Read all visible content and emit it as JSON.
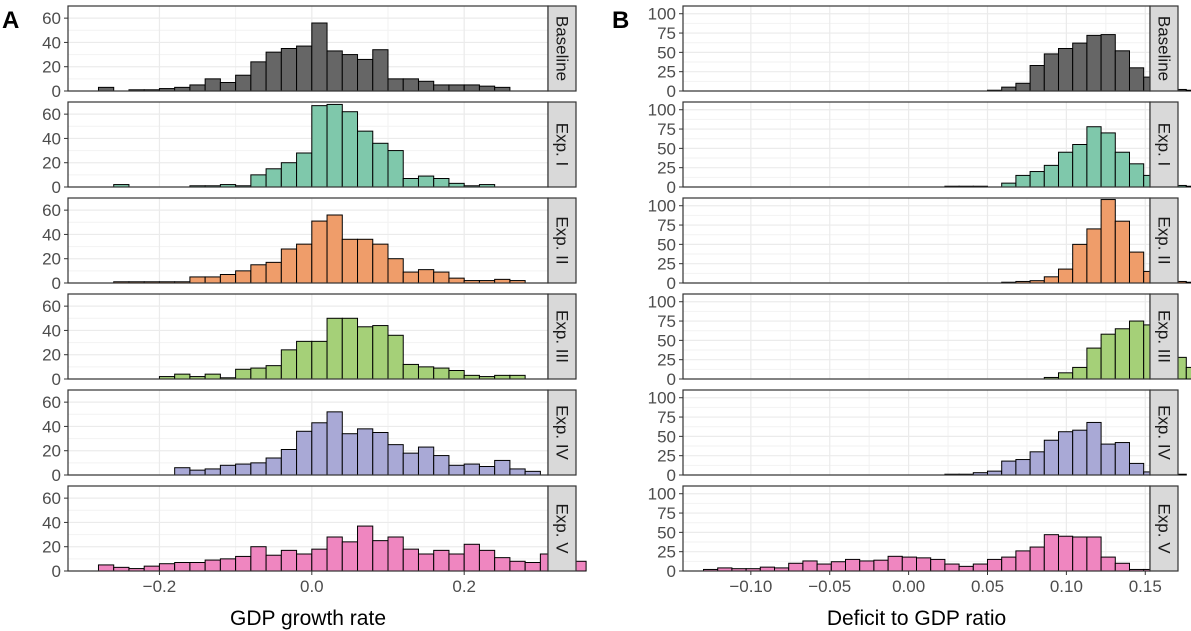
{
  "chart_data": [
    {
      "type": "bar",
      "tag": "A",
      "xlabel": "GDP growth rate",
      "ylabel": "",
      "xlim": [
        -0.32,
        0.31
      ],
      "ylim": [
        0,
        70
      ],
      "xticks": [
        -0.2,
        0.0,
        0.2
      ],
      "xtick_labels": [
        "−0.2",
        "0.0",
        "0.2"
      ],
      "yticks": [
        0,
        20,
        40,
        60
      ],
      "ytick_labels": [
        "0",
        "20",
        "40",
        "60"
      ],
      "bin_start": -0.28,
      "bin_width": 0.02,
      "grid": true,
      "series": [
        {
          "name": "Baseline",
          "color": "#666666",
          "values": [
            3,
            0,
            1,
            1,
            2,
            3,
            5,
            10,
            7,
            13,
            24,
            32,
            35,
            37,
            56,
            33,
            30,
            26,
            34,
            10,
            10,
            8,
            5,
            5,
            5,
            4,
            3
          ]
        },
        {
          "name": "Exp. I",
          "color": "#7fc8ab",
          "values": [
            0,
            2,
            0,
            0,
            0,
            0,
            1,
            1,
            2,
            1,
            10,
            15,
            20,
            28,
            67,
            68,
            62,
            46,
            36,
            30,
            7,
            9,
            7,
            3,
            1,
            2,
            0,
            0
          ]
        },
        {
          "name": "Exp. II",
          "color": "#ef9d6a",
          "values": [
            0,
            1,
            1,
            1,
            1,
            1,
            5,
            5,
            7,
            10,
            15,
            17,
            28,
            32,
            51,
            56,
            36,
            36,
            32,
            20,
            9,
            11,
            9,
            4,
            2,
            2,
            3,
            2,
            0
          ]
        },
        {
          "name": "Exp. III",
          "color": "#a5d078",
          "values": [
            0,
            0,
            0,
            0,
            2,
            4,
            2,
            4,
            1,
            8,
            9,
            11,
            24,
            31,
            31,
            50,
            50,
            43,
            44,
            36,
            12,
            10,
            9,
            7,
            3,
            2,
            3,
            3,
            0
          ]
        },
        {
          "name": "Exp. IV",
          "color": "#a9a9d6",
          "values": [
            0,
            0,
            0,
            0,
            0,
            6,
            4,
            5,
            8,
            9,
            10,
            14,
            21,
            36,
            43,
            52,
            34,
            38,
            35,
            25,
            18,
            23,
            16,
            8,
            9,
            7,
            12,
            5,
            3,
            0
          ]
        },
        {
          "name": "Exp. V",
          "color": "#ef86c0",
          "values": [
            5,
            3,
            2,
            4,
            6,
            7,
            7,
            9,
            10,
            12,
            20,
            13,
            17,
            14,
            18,
            28,
            24,
            37,
            25,
            28,
            18,
            14,
            17,
            14,
            22,
            17,
            11,
            8,
            7,
            14,
            5,
            8
          ]
        }
      ]
    },
    {
      "type": "bar",
      "tag": "B",
      "xlabel": "Deficit to GDP ratio",
      "ylabel": "",
      "xlim": [
        -0.143,
        0.153
      ],
      "ylim": [
        0,
        110
      ],
      "xticks": [
        -0.1,
        -0.05,
        0.0,
        0.05,
        0.1,
        0.15
      ],
      "xtick_labels": [
        "−0.10",
        "−0.05",
        "0.00",
        "0.05",
        "0.10",
        "0.15"
      ],
      "yticks": [
        0,
        25,
        50,
        75,
        100
      ],
      "ytick_labels": [
        "0",
        "25",
        "50",
        "75",
        "100"
      ],
      "bin_start": -0.13,
      "bin_width": 0.009,
      "grid": true,
      "series": [
        {
          "name": "Baseline",
          "color": "#666666",
          "values": [
            0,
            0,
            0,
            0,
            0,
            0,
            0,
            0,
            0,
            0,
            0,
            0,
            0,
            0,
            0,
            0,
            0,
            0,
            0,
            0,
            1,
            5,
            10,
            33,
            48,
            55,
            62,
            72,
            73,
            52,
            30,
            18,
            8,
            2,
            1,
            0
          ]
        },
        {
          "name": "Exp. I",
          "color": "#7fc8ab",
          "values": [
            0,
            0,
            0,
            0,
            0,
            0,
            0,
            0,
            0,
            0,
            0,
            0,
            0,
            0,
            0,
            0,
            0,
            1,
            1,
            1,
            0,
            5,
            15,
            20,
            28,
            45,
            55,
            78,
            70,
            45,
            30,
            15,
            5,
            2,
            1,
            0
          ]
        },
        {
          "name": "Exp. II",
          "color": "#ef9d6a",
          "values": [
            0,
            0,
            0,
            0,
            0,
            0,
            0,
            0,
            0,
            0,
            0,
            0,
            0,
            0,
            0,
            0,
            0,
            0,
            0,
            0,
            0,
            1,
            2,
            3,
            8,
            18,
            50,
            70,
            108,
            80,
            40,
            15,
            5,
            2,
            1,
            0
          ]
        },
        {
          "name": "Exp. III",
          "color": "#a5d078",
          "values": [
            0,
            0,
            0,
            0,
            0,
            0,
            0,
            0,
            0,
            0,
            0,
            0,
            0,
            0,
            0,
            0,
            0,
            0,
            0,
            0,
            0,
            0,
            0,
            0,
            2,
            8,
            15,
            40,
            58,
            65,
            75,
            70,
            40,
            28,
            15,
            8,
            3
          ]
        },
        {
          "name": "Exp. IV",
          "color": "#a9a9d6",
          "values": [
            0,
            0,
            0,
            0,
            0,
            0,
            0,
            0,
            0,
            0,
            0,
            0,
            0,
            0,
            0,
            0,
            0,
            1,
            1,
            3,
            5,
            18,
            20,
            30,
            45,
            56,
            58,
            68,
            40,
            42,
            15,
            4,
            1,
            1,
            0,
            0
          ]
        },
        {
          "name": "Exp. V",
          "color": "#ef86c0",
          "values": [
            2,
            4,
            3,
            3,
            5,
            4,
            10,
            13,
            9,
            12,
            15,
            13,
            14,
            19,
            18,
            17,
            15,
            9,
            6,
            9,
            15,
            18,
            26,
            31,
            47,
            45,
            44,
            44,
            18,
            10,
            2,
            2,
            0
          ]
        }
      ]
    }
  ]
}
